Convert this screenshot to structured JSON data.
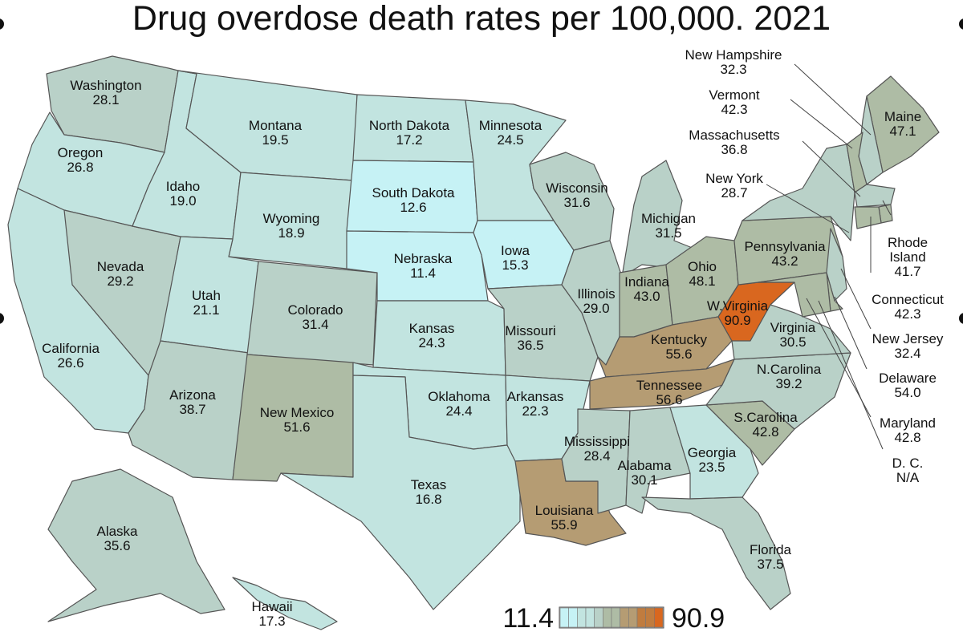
{
  "title": "Drug overdose death rates per 100,000. 2021",
  "scale": {
    "min_label": "11.4",
    "max_label": "90.9",
    "min": 11.4,
    "max": 90.9,
    "colors": [
      "#c6f2f5",
      "#c2e4e0",
      "#b9d1c8",
      "#aebca5",
      "#b59c73",
      "#c07c3f",
      "#d9671f"
    ]
  },
  "states": {
    "WA": {
      "name": "Washington",
      "value": "28.1"
    },
    "OR": {
      "name": "Oregon",
      "value": "26.8"
    },
    "CA": {
      "name": "California",
      "value": "26.6"
    },
    "NV": {
      "name": "Nevada",
      "value": "29.2"
    },
    "ID": {
      "name": "Idaho",
      "value": "19.0"
    },
    "MT": {
      "name": "Montana",
      "value": "19.5"
    },
    "WY": {
      "name": "Wyoming",
      "value": "18.9"
    },
    "UT": {
      "name": "Utah",
      "value": "21.1"
    },
    "AZ": {
      "name": "Arizona",
      "value": "38.7"
    },
    "CO": {
      "name": "Colorado",
      "value": "31.4"
    },
    "NM": {
      "name": "New Mexico",
      "value": "51.6"
    },
    "ND": {
      "name": "North Dakota",
      "value": "17.2"
    },
    "SD": {
      "name": "South Dakota",
      "value": "12.6"
    },
    "NE": {
      "name": "Nebraska",
      "value": "11.4"
    },
    "KS": {
      "name": "Kansas",
      "value": "24.3"
    },
    "OK": {
      "name": "Oklahoma",
      "value": "24.4"
    },
    "TX": {
      "name": "Texas",
      "value": "16.8"
    },
    "MN": {
      "name": "Minnesota",
      "value": "24.5"
    },
    "IA": {
      "name": "Iowa",
      "value": "15.3"
    },
    "MO": {
      "name": "Missouri",
      "value": "36.5"
    },
    "AR": {
      "name": "Arkansas",
      "value": "22.3"
    },
    "LA": {
      "name": "Louisiana",
      "value": "55.9"
    },
    "WI": {
      "name": "Wisconsin",
      "value": "31.6"
    },
    "IL": {
      "name": "Illinois",
      "value": "29.0"
    },
    "MI": {
      "name": "Michigan",
      "value": "31.5"
    },
    "IN": {
      "name": "Indiana",
      "value": "43.0"
    },
    "OH": {
      "name": "Ohio",
      "value": "48.1"
    },
    "KY": {
      "name": "Kentucky",
      "value": "55.6"
    },
    "TN": {
      "name": "Tennessee",
      "value": "56.6"
    },
    "MS": {
      "name": "Mississippi",
      "value": "28.4"
    },
    "AL": {
      "name": "Alabama",
      "value": "30.1"
    },
    "GA": {
      "name": "Georgia",
      "value": "23.5"
    },
    "FL": {
      "name": "Florida",
      "value": "37.5"
    },
    "SC": {
      "name": "S.Carolina",
      "value": "42.8"
    },
    "NC": {
      "name": "N.Carolina",
      "value": "39.2"
    },
    "VA": {
      "name": "Virginia",
      "value": "30.5"
    },
    "WV": {
      "name": "W.Virginia",
      "value": "90.9"
    },
    "PA": {
      "name": "Pennsylvania",
      "value": "43.2"
    },
    "NY": {
      "name": "New York",
      "value": "28.7"
    },
    "ME": {
      "name": "Maine",
      "value": "47.1"
    },
    "NH": {
      "name": "New Hampshire",
      "value": "32.3"
    },
    "VT": {
      "name": "Vermont",
      "value": "42.3"
    },
    "MA": {
      "name": "Massachusetts",
      "value": "36.8"
    },
    "RI": {
      "name": "Rhode Island",
      "value": "41.7"
    },
    "CT": {
      "name": "Connecticut",
      "value": "42.3"
    },
    "NJ": {
      "name": "New Jersey",
      "value": "32.4"
    },
    "DE": {
      "name": "Delaware",
      "value": "54.0"
    },
    "MD": {
      "name": "Maryland",
      "value": "42.8"
    },
    "DC": {
      "name": "D. C.",
      "value": "N/A"
    },
    "AK": {
      "name": "Alaska",
      "value": "35.6"
    },
    "HI": {
      "name": "Hawaii",
      "value": "17.3"
    }
  }
}
